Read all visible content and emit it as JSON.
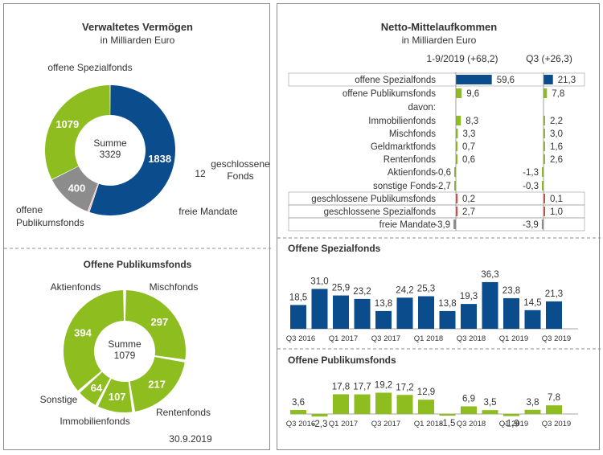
{
  "colors": {
    "dark_blue": "#0a4c8c",
    "green": "#8dbd1e",
    "gray": "#8c8c8c",
    "red": "#e0413a",
    "text": "#333333"
  },
  "chart_data": [
    {
      "type": "pie",
      "title": "Verwaltetes Vermögen",
      "subtitle": "in Milliarden Euro",
      "center_label": "Summe",
      "center_value": "3329",
      "slices": [
        {
          "label": "offene Spezialfonds",
          "value": 1838,
          "value_label": "1838",
          "color": "#0a4c8c"
        },
        {
          "label": "geschlossene Fonds",
          "value": 12,
          "value_label": "12",
          "color": "#f0a090"
        },
        {
          "label": "freie Mandate",
          "value": 400,
          "value_label": "400",
          "color": "#8c8c8c"
        },
        {
          "label": "offene Publikumsfonds",
          "value": 1079,
          "value_label": "1079",
          "color": "#8dbd1e"
        }
      ]
    },
    {
      "type": "pie",
      "title": "Offene Publikumsfonds",
      "center_label": "Summe",
      "center_value": "1079",
      "date": "30.9.2019",
      "slices": [
        {
          "label": "Mischfonds",
          "value": 297,
          "value_label": "297"
        },
        {
          "label": "Rentenfonds",
          "value": 217,
          "value_label": "217"
        },
        {
          "label": "Immobilienfonds",
          "value": 107,
          "value_label": "107"
        },
        {
          "label": "Sonstige",
          "value": 64,
          "value_label": "64"
        },
        {
          "label": "Aktienfonds",
          "value": 394,
          "value_label": "394"
        }
      ]
    },
    {
      "type": "bar",
      "title": "Netto-Mittelaufkommen",
      "subtitle": "in Milliarden Euro",
      "column_headers": [
        "1-9/2019 (+68,2)",
        "Q3 (+26,3)"
      ],
      "rows": [
        {
          "label": "offene Spezialfonds",
          "v1": 59.6,
          "l1": "59,6",
          "v2": 21.3,
          "l2": "21,3",
          "color": "#0a4c8c",
          "highlight": true
        },
        {
          "label": "offene Publikumsfonds",
          "v1": 9.6,
          "l1": "9,6",
          "v2": 7.8,
          "l2": "7,8",
          "color": "#8dbd1e"
        },
        {
          "label": "davon:",
          "header": true
        },
        {
          "label": "Immobilienfonds",
          "v1": 8.3,
          "l1": "8,3",
          "v2": 2.2,
          "l2": "2,2",
          "color": "#8dbd1e"
        },
        {
          "label": "Mischfonds",
          "v1": 3.3,
          "l1": "3,3",
          "v2": 3.0,
          "l2": "3,0",
          "color": "#8dbd1e"
        },
        {
          "label": "Geldmarktfonds",
          "v1": 0.7,
          "l1": "0,7",
          "v2": 1.6,
          "l2": "1,6",
          "color": "#8dbd1e"
        },
        {
          "label": "Rentenfonds",
          "v1": 0.6,
          "l1": "0,6",
          "v2": 2.6,
          "l2": "2,6",
          "color": "#8dbd1e"
        },
        {
          "label": "Aktienfonds",
          "v1": -0.6,
          "l1": "-0,6",
          "v2": -1.3,
          "l2": "-1,3",
          "color": "#8dbd1e"
        },
        {
          "label": "sonstige Fonds",
          "v1": -2.7,
          "l1": "-2,7",
          "v2": -0.3,
          "l2": "-0,3",
          "color": "#8dbd1e"
        },
        {
          "label": "geschlossene Publikumsfonds",
          "v1": 0.2,
          "l1": "0,2",
          "v2": 0.1,
          "l2": "0,1",
          "color": "#e0413a",
          "highlight": true
        },
        {
          "label": "geschlossene Spezialfonds",
          "v1": 2.7,
          "l1": "2,7",
          "v2": 1.0,
          "l2": "1,0",
          "color": "#e0413a",
          "highlight": true
        },
        {
          "label": "freie Mandate",
          "v1": -3.9,
          "l1": "-3,9",
          "v2": -3.9,
          "l2": "-3,9",
          "color": "#8c8c8c",
          "highlight": true
        }
      ]
    },
    {
      "type": "bar",
      "title": "Offene Spezialfonds",
      "color": "#0a4c8c",
      "values": [
        18.5,
        31.0,
        25.9,
        23.2,
        13.8,
        24.2,
        25.3,
        13.8,
        19.3,
        36.3,
        23.8,
        14.5,
        21.3
      ],
      "value_labels": [
        "18,5",
        "31,0",
        "25,9",
        "23,2",
        "13,8",
        "24,2",
        "25,3",
        "13,8",
        "19,3",
        "36,3",
        "23,8",
        "14,5",
        "21,3"
      ],
      "x_labels": [
        "Q3 2016",
        "",
        "Q1 2017",
        "",
        "Q3 2017",
        "",
        "Q1 2018",
        "",
        "Q3 2018",
        "",
        "Q1 2019",
        "",
        "Q3 2019"
      ]
    },
    {
      "type": "bar",
      "title": "Offene Publikumsfonds",
      "color": "#8dbd1e",
      "values": [
        3.6,
        -2.3,
        17.8,
        17.7,
        19.2,
        17.2,
        12.9,
        -1.5,
        6.9,
        3.5,
        -1.9,
        3.8,
        7.8
      ],
      "value_labels": [
        "3,6",
        "-2,3",
        "17,8",
        "17,7",
        "19,2",
        "17,2",
        "12,9",
        "-1,5",
        "6,9",
        "3,5",
        "-1,9",
        "3,8",
        "7,8"
      ],
      "x_labels": [
        "Q3 2016",
        "",
        "Q1 2017",
        "",
        "Q3 2017",
        "",
        "Q1 2018",
        "",
        "Q3 2018",
        "",
        "Q1 2019",
        "",
        "Q3 2019"
      ]
    }
  ]
}
